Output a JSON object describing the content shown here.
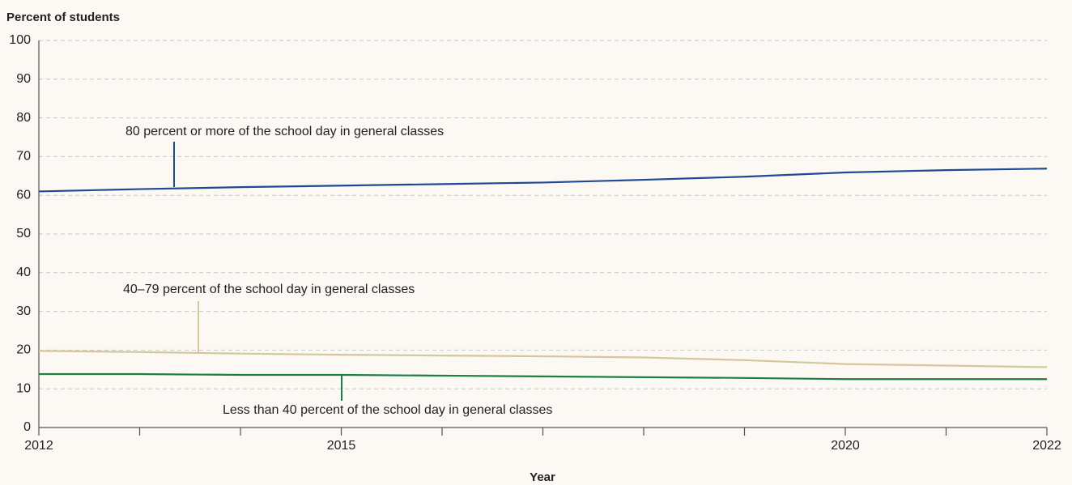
{
  "chart_data": {
    "type": "line",
    "y_label": "Percent of students",
    "x_label": "Year",
    "x": [
      2012,
      2013,
      2014,
      2015,
      2016,
      2017,
      2018,
      2019,
      2020,
      2021,
      2022
    ],
    "xlim": [
      2012,
      2022
    ],
    "xticks": [
      2012,
      2015,
      2020,
      2022
    ],
    "xminor_ticks": [
      2013,
      2014,
      2016,
      2017,
      2018,
      2019,
      2021
    ],
    "ylim": [
      0,
      100
    ],
    "yticks": [
      0,
      10,
      20,
      30,
      40,
      50,
      60,
      70,
      80,
      90,
      100
    ],
    "grid": true,
    "series": [
      {
        "name": "80 percent or more of the school day in general classes",
        "color": "#1f4a93",
        "values": [
          61,
          61.6,
          62.1,
          62.5,
          62.9,
          63.3,
          64,
          64.8,
          65.9,
          66.5,
          66.9
        ]
      },
      {
        "name": "40–79 percent of the school day in general classes",
        "color": "#d3c79b",
        "values": [
          19.8,
          19.5,
          19.1,
          18.8,
          18.6,
          18.4,
          18.1,
          17.4,
          16.4,
          16.0,
          15.6
        ]
      },
      {
        "name": "Less than 40 percent of the school day in general classes",
        "color": "#1a7f3f",
        "values": [
          13.8,
          13.8,
          13.6,
          13.6,
          13.4,
          13.2,
          13,
          12.8,
          12.5,
          12.5,
          12.5
        ]
      }
    ]
  }
}
